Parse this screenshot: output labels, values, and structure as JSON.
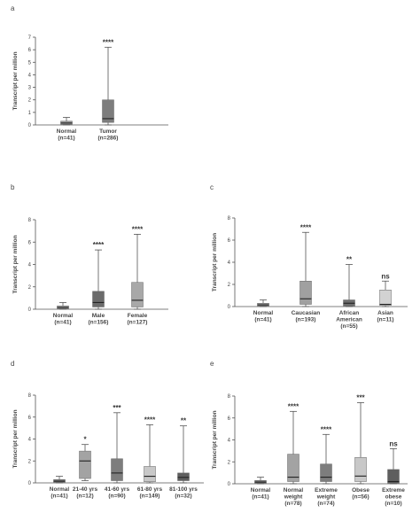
{
  "chart_data": [
    {
      "id": "a",
      "panel_label": "a",
      "type": "box",
      "ylabel": "Transcript per million",
      "ylim": [
        0,
        7
      ],
      "yticks": [
        0,
        1,
        2,
        3,
        4,
        5,
        6,
        7
      ],
      "categories": [
        {
          "lines": [
            "Normal",
            "(n=41)"
          ],
          "min": 0,
          "q1": 0.05,
          "median": 0.15,
          "q3": 0.3,
          "max": 0.6,
          "color": "#9a9a9a",
          "sig": ""
        },
        {
          "lines": [
            "Tumor",
            "(n=286)"
          ],
          "min": 0,
          "q1": 0.2,
          "median": 0.5,
          "q3": 2.0,
          "max": 6.2,
          "color": "#7d7d7d",
          "sig": "****"
        }
      ]
    },
    {
      "id": "b",
      "panel_label": "b",
      "type": "box",
      "ylabel": "Transcript per million",
      "ylim": [
        0,
        8
      ],
      "yticks": [
        0,
        2,
        4,
        6,
        8
      ],
      "categories": [
        {
          "lines": [
            "Normal",
            "(n=41)"
          ],
          "min": 0,
          "q1": 0.05,
          "median": 0.15,
          "q3": 0.3,
          "max": 0.6,
          "color": "#9a9a9a",
          "sig": ""
        },
        {
          "lines": [
            "Male",
            "(n=156)"
          ],
          "min": 0,
          "q1": 0.2,
          "median": 0.6,
          "q3": 1.6,
          "max": 5.3,
          "color": "#6b6b6b",
          "sig": "****"
        },
        {
          "lines": [
            "Female",
            "(n=127)"
          ],
          "min": 0,
          "q1": 0.2,
          "median": 0.8,
          "q3": 2.4,
          "max": 6.7,
          "color": "#a8a8a8",
          "sig": "****"
        }
      ]
    },
    {
      "id": "c",
      "panel_label": "c",
      "type": "box",
      "ylabel": "Transcript per million",
      "ylim": [
        0,
        8
      ],
      "yticks": [
        0,
        2,
        4,
        6,
        8
      ],
      "categories": [
        {
          "lines": [
            "Normal",
            "(n=41)"
          ],
          "min": 0,
          "q1": 0.05,
          "median": 0.15,
          "q3": 0.3,
          "max": 0.6,
          "color": "#9a9a9a",
          "sig": ""
        },
        {
          "lines": [
            "Caucasian",
            "(n=193)"
          ],
          "min": 0,
          "q1": 0.2,
          "median": 0.7,
          "q3": 2.3,
          "max": 6.7,
          "color": "#a0a0a0",
          "sig": "****"
        },
        {
          "lines": [
            "African",
            "American",
            "(n=55)"
          ],
          "min": 0,
          "q1": 0.05,
          "median": 0.3,
          "q3": 0.6,
          "max": 3.8,
          "color": "#6e6e6e",
          "sig": "**"
        },
        {
          "lines": [
            "Asian",
            "(n=11)"
          ],
          "min": 0,
          "q1": 0.1,
          "median": 0.2,
          "q3": 1.5,
          "max": 2.3,
          "color": "#d2d2d2",
          "sig": "ns"
        }
      ]
    },
    {
      "id": "d",
      "panel_label": "d",
      "type": "box",
      "ylabel": "Transcript per million",
      "ylim": [
        0,
        8
      ],
      "yticks": [
        0,
        2,
        4,
        6,
        8
      ],
      "categories": [
        {
          "lines": [
            "Normal",
            "(n=41)"
          ],
          "min": 0,
          "q1": 0.05,
          "median": 0.15,
          "q3": 0.3,
          "max": 0.6,
          "color": "#7a7a7a",
          "sig": ""
        },
        {
          "lines": [
            "21-40 yrs",
            "(n=12)"
          ],
          "min": 0.2,
          "q1": 0.4,
          "median": 2.0,
          "q3": 2.9,
          "max": 3.5,
          "color": "#a3a3a3",
          "sig": "*"
        },
        {
          "lines": [
            "41-60 yrs",
            "(n=90)"
          ],
          "min": 0,
          "q1": 0.2,
          "median": 0.9,
          "q3": 2.2,
          "max": 6.4,
          "color": "#7d7d7d",
          "sig": "***"
        },
        {
          "lines": [
            "61-80 yrs",
            "(n=149)"
          ],
          "min": 0,
          "q1": 0.1,
          "median": 0.6,
          "q3": 1.5,
          "max": 5.3,
          "color": "#c8c8c8",
          "sig": "****"
        },
        {
          "lines": [
            "81-100 yrs",
            "(n=32)"
          ],
          "min": 0,
          "q1": 0.2,
          "median": 0.5,
          "q3": 0.9,
          "max": 5.2,
          "color": "#5e5e5e",
          "sig": "**"
        }
      ]
    },
    {
      "id": "e",
      "panel_label": "e",
      "type": "box",
      "ylabel": "Transcript per million",
      "ylim": [
        0,
        8
      ],
      "yticks": [
        0,
        2,
        4,
        6,
        8
      ],
      "categories": [
        {
          "lines": [
            "Normal",
            "(n=41)"
          ],
          "min": 0,
          "q1": 0.05,
          "median": 0.15,
          "q3": 0.3,
          "max": 0.6,
          "color": "#7a7a7a",
          "sig": ""
        },
        {
          "lines": [
            "Normal",
            "weight",
            "(n=78)"
          ],
          "min": 0,
          "q1": 0.2,
          "median": 0.6,
          "q3": 2.7,
          "max": 6.6,
          "color": "#a3a3a3",
          "sig": "****"
        },
        {
          "lines": [
            "Extreme",
            "weight",
            "(n=74)"
          ],
          "min": 0,
          "q1": 0.2,
          "median": 0.6,
          "q3": 1.8,
          "max": 4.5,
          "color": "#7d7d7d",
          "sig": "****"
        },
        {
          "lines": [
            "Obese",
            "(n=56)"
          ],
          "min": 0,
          "q1": 0.2,
          "median": 0.7,
          "q3": 2.4,
          "max": 7.4,
          "color": "#c8c8c8",
          "sig": "***"
        },
        {
          "lines": [
            "Extreme",
            "obese",
            "(n=10)"
          ],
          "min": 0,
          "q1": 0.05,
          "median": 0.2,
          "q3": 1.3,
          "max": 3.2,
          "color": "#5e5e5e",
          "sig": "ns"
        }
      ]
    }
  ]
}
